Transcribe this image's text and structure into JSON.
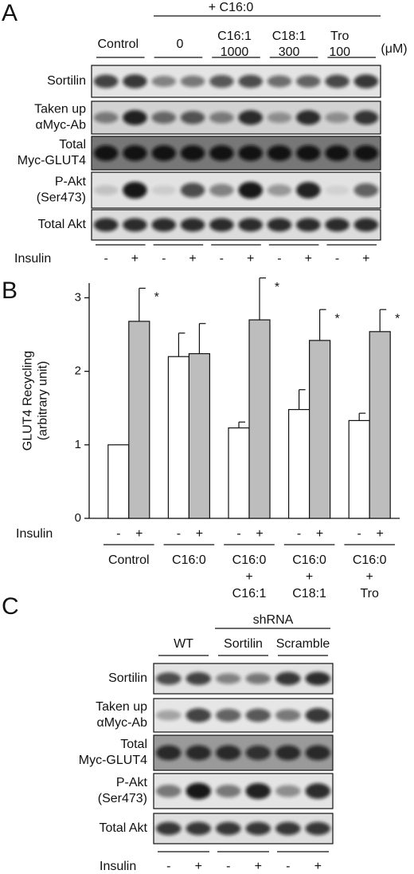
{
  "panel_a": {
    "label": "A",
    "treatment": "+ C16:0",
    "unit": "(μM)",
    "groups": [
      [
        "Control"
      ],
      [
        "0"
      ],
      [
        "C16:1",
        "1000"
      ],
      [
        "C18:1",
        "300"
      ],
      [
        "Tro",
        "100"
      ]
    ],
    "rows": [
      [
        "Sortilin"
      ],
      [
        "Taken up",
        "αMyc-Ab"
      ],
      [
        "Total",
        "Myc-GLUT4"
      ],
      [
        "P-Akt",
        "(Ser473)"
      ],
      [
        "Total Akt"
      ]
    ],
    "insulin_label": "Insulin",
    "lane_signs": [
      "-",
      "+"
    ]
  },
  "chart_data": {
    "type": "bar",
    "panel_label": "B",
    "y_label": [
      "GLUT4 Recycling",
      "(arbitrary unit)"
    ],
    "x_row_label": "Insulin",
    "categories": [
      [
        "Control"
      ],
      [
        "C16:0"
      ],
      [
        "C16:0",
        "+",
        "C16:1"
      ],
      [
        "C16:0",
        "+",
        "C18:1"
      ],
      [
        "C16:0",
        "+",
        "Tro"
      ]
    ],
    "series": [
      {
        "name": "-",
        "color": "#ffffff",
        "values": [
          1.0,
          2.2,
          1.23,
          1.48,
          1.33
        ],
        "errors": [
          null,
          0.32,
          0.08,
          0.27,
          0.1
        ]
      },
      {
        "name": "+",
        "color": "#bdbdbd",
        "values": [
          2.68,
          2.24,
          2.7,
          2.42,
          2.54
        ],
        "errors": [
          0.45,
          0.41,
          0.57,
          0.42,
          0.3
        ]
      }
    ],
    "significance": [
      "*",
      null,
      "*",
      "*",
      "*"
    ],
    "ylim": [
      0,
      3.2
    ],
    "yticks": [
      0,
      1,
      2,
      3
    ]
  },
  "panel_c": {
    "label": "C",
    "header": "shRNA",
    "groups": [
      [
        "WT"
      ],
      [
        "Sortilin"
      ],
      [
        "Scramble"
      ]
    ],
    "rows": [
      [
        "Sortilin"
      ],
      [
        "Taken up",
        "αMyc-Ab"
      ],
      [
        "Total",
        "Myc-GLUT4"
      ],
      [
        "P-Akt",
        "(Ser473)"
      ],
      [
        "Total Akt"
      ]
    ],
    "insulin_label": "Insulin",
    "lane_signs": [
      "-",
      "+"
    ]
  }
}
